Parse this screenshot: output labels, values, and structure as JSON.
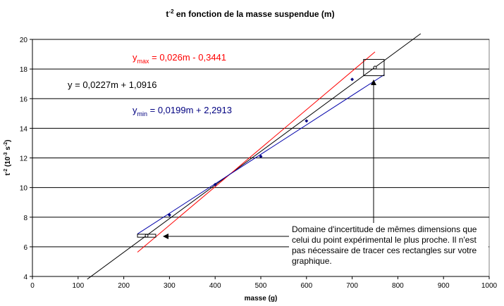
{
  "chart_data": {
    "type": "scatter",
    "title_main": "t",
    "title_sup": "-2",
    "title_rest": " en fonction de la masse suspendue (m)",
    "xlabel": "masse (g)",
    "ylabel_main": "t",
    "ylabel_sup1": "-2",
    "ylabel_mid": " (10",
    "ylabel_sup2": "-3",
    "ylabel_mid2": " s",
    "ylabel_sup3": "-2",
    "ylabel_end": ")",
    "xlim": [
      0,
      1000
    ],
    "ylim": [
      4,
      20
    ],
    "x_ticks": [
      "0",
      "100",
      "200",
      "300",
      "400",
      "500",
      "600",
      "700",
      "800",
      "900",
      "1000"
    ],
    "y_ticks": [
      "4",
      "6",
      "8",
      "10",
      "12",
      "14",
      "16",
      "18",
      "20"
    ],
    "grid": "horizontal",
    "series": [
      {
        "kind": "points",
        "color": "#000080",
        "x": [
          300,
          400,
          500,
          600,
          700
        ],
        "y": [
          8.15,
          10.2,
          12.1,
          14.5,
          17.3
        ]
      },
      {
        "kind": "open-points",
        "color": "#000000",
        "x": [
          250,
          750
        ],
        "y": [
          6.75,
          18.1
        ]
      }
    ],
    "fit_lines": [
      {
        "id": "y",
        "color": "#000000",
        "slope": 0.0227,
        "intercept": 1.0916,
        "x_range": [
          120,
          850
        ]
      },
      {
        "id": "ymax",
        "color": "#ff0000",
        "slope": 0.026,
        "intercept": -0.3441,
        "x_range": [
          230,
          750
        ]
      },
      {
        "id": "ymin",
        "color": "#0000aa",
        "slope": 0.0199,
        "intercept": 2.2913,
        "x_range": [
          230,
          770
        ]
      }
    ],
    "uncertainty_boxes": [
      {
        "x_range": [
          230,
          270
        ],
        "y_range": [
          6.65,
          6.85
        ],
        "color": "#000000"
      },
      {
        "x_range": [
          725,
          770
        ],
        "y_range": [
          17.55,
          18.65
        ],
        "color": "#000000"
      }
    ],
    "equations": {
      "ymax": {
        "main": "y",
        "sub": "max",
        "rest": " = 0,026m - 0,3441",
        "color": "#ff0000"
      },
      "y": {
        "main": "y = 0,0227m + 1,0916",
        "color": "#000000"
      },
      "ymin": {
        "main": "y",
        "sub": "min",
        "rest": " = 0,0199m + 2,2913",
        "color": "#000080"
      }
    },
    "annotation": {
      "lines": [
        "Domaine d'incertitude de mêmes dimensions que",
        "celui du point expérimental le plus proche. Il n'est",
        "pas nécessaire de tracer ces rectangles sur votre",
        "graphique."
      ]
    }
  }
}
